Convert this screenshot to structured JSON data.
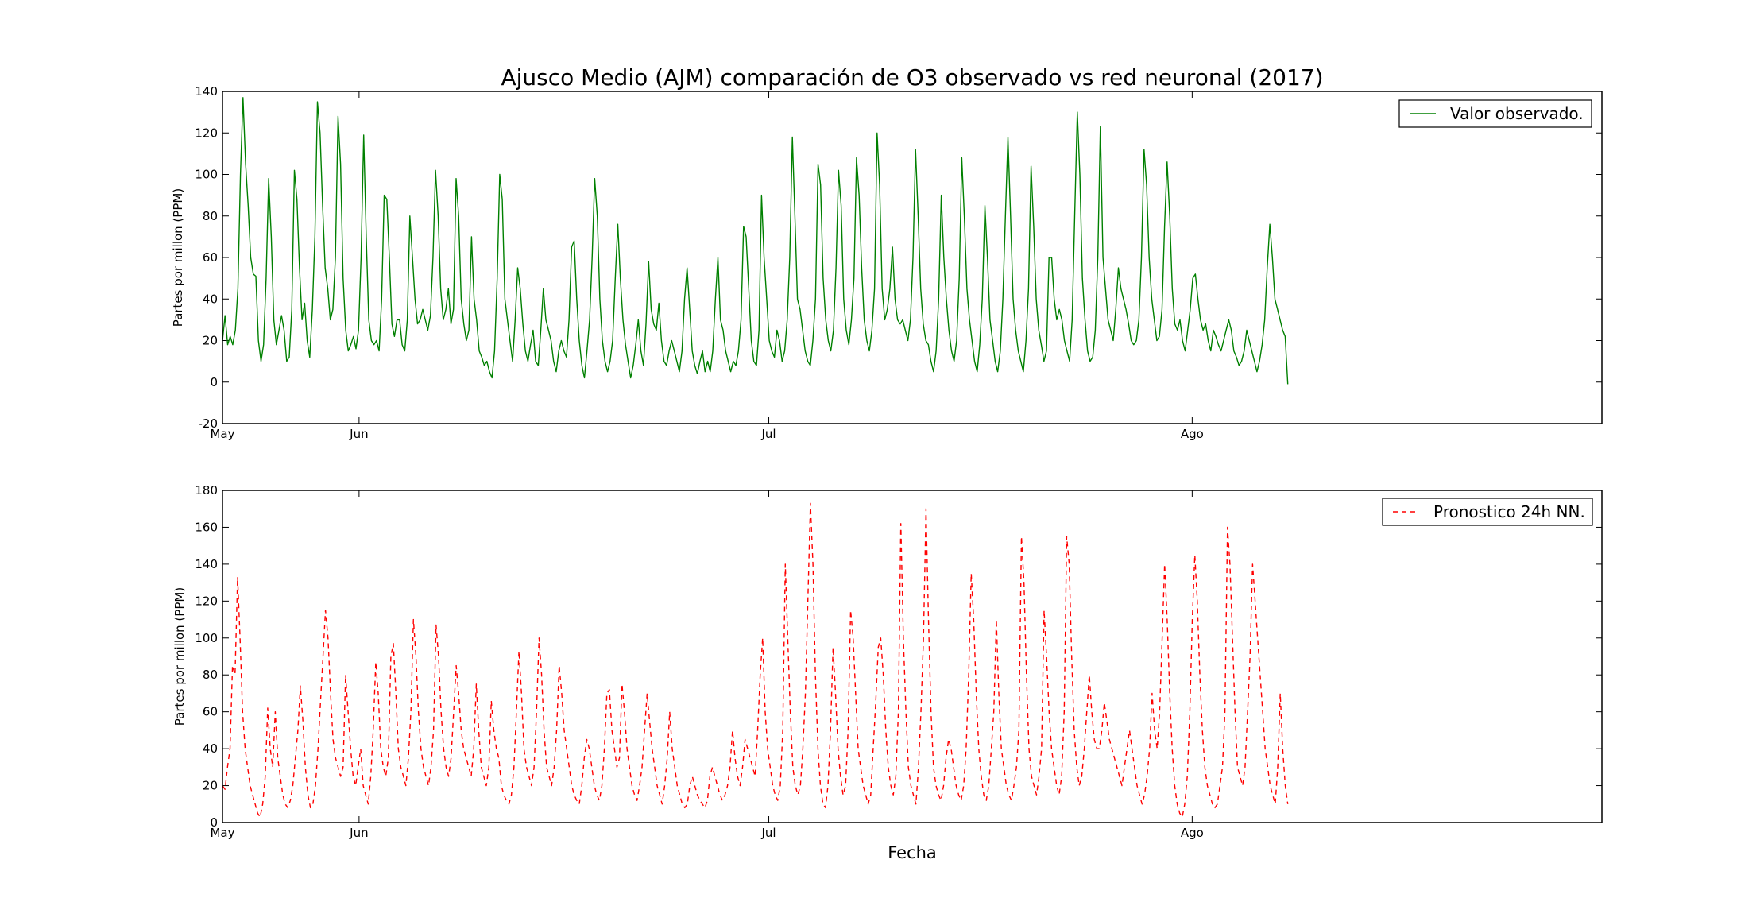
{
  "figure": {
    "title": "Ajusco Medio (AJM) comparación de O3 observado vs red neuronal (2017)",
    "xlabel": "Fecha"
  },
  "chart_data": [
    {
      "type": "line",
      "title": "Ajusco Medio (AJM) comparación de O3 observado vs red neuronal (2017)",
      "xlabel": "",
      "ylabel": "Partes por millon (PPM)",
      "ylim": [
        -20,
        140
      ],
      "yticks": [
        -20,
        0,
        20,
        40,
        60,
        80,
        100,
        120,
        140
      ],
      "xlim": [
        "2017-05-22",
        "2017-08-31"
      ],
      "xticks": [
        {
          "label": "May",
          "date": "2017-05-22"
        },
        {
          "label": "Jun",
          "date": "2017-06-01"
        },
        {
          "label": "Jul",
          "date": "2017-07-01"
        },
        {
          "label": "Ago",
          "date": "2017-08-01"
        }
      ],
      "grid": false,
      "legend_position": "top-right",
      "series": [
        {
          "name": "Valor observado.",
          "color": "#008000",
          "line_style": "solid",
          "x_start": "2017-05-22",
          "x_end": "2017-08-08",
          "values": [
            20,
            32,
            18,
            22,
            18,
            25,
            45,
            100,
            137,
            105,
            85,
            60,
            52,
            51,
            20,
            10,
            18,
            50,
            98,
            70,
            30,
            18,
            25,
            32,
            25,
            10,
            12,
            35,
            102,
            88,
            55,
            30,
            38,
            20,
            12,
            35,
            70,
            135,
            120,
            85,
            55,
            45,
            30,
            35,
            60,
            128,
            105,
            50,
            25,
            15,
            18,
            22,
            16,
            25,
            60,
            119,
            70,
            30,
            20,
            18,
            20,
            15,
            40,
            90,
            88,
            60,
            28,
            22,
            30,
            30,
            18,
            15,
            30,
            80,
            60,
            40,
            28,
            30,
            35,
            30,
            25,
            32,
            60,
            102,
            80,
            45,
            30,
            35,
            45,
            28,
            35,
            98,
            80,
            40,
            28,
            20,
            25,
            70,
            40,
            30,
            15,
            12,
            8,
            10,
            5,
            2,
            15,
            50,
            100,
            88,
            40,
            30,
            20,
            10,
            30,
            55,
            45,
            28,
            15,
            10,
            18,
            25,
            10,
            8,
            25,
            45,
            30,
            25,
            20,
            10,
            5,
            15,
            20,
            15,
            12,
            30,
            65,
            68,
            40,
            20,
            8,
            2,
            15,
            30,
            60,
            98,
            80,
            40,
            20,
            10,
            5,
            10,
            20,
            50,
            76,
            50,
            30,
            18,
            10,
            2,
            8,
            18,
            30,
            15,
            8,
            28,
            58,
            35,
            28,
            25,
            38,
            20,
            10,
            8,
            15,
            20,
            15,
            10,
            5,
            15,
            40,
            55,
            35,
            15,
            8,
            4,
            10,
            15,
            5,
            10,
            5,
            15,
            40,
            60,
            30,
            25,
            15,
            10,
            5,
            10,
            8,
            15,
            30,
            75,
            70,
            45,
            20,
            10,
            8,
            25,
            90,
            60,
            40,
            20,
            15,
            12,
            25,
            20,
            10,
            15,
            30,
            60,
            118,
            80,
            40,
            35,
            25,
            15,
            10,
            8,
            20,
            40,
            105,
            95,
            50,
            30,
            20,
            15,
            25,
            55,
            102,
            85,
            40,
            25,
            18,
            30,
            50,
            108,
            90,
            55,
            30,
            20,
            15,
            25,
            45,
            120,
            95,
            45,
            30,
            35,
            45,
            65,
            40,
            30,
            28,
            30,
            25,
            20,
            30,
            60,
            112,
            80,
            45,
            28,
            20,
            18,
            10,
            5,
            15,
            40,
            90,
            60,
            40,
            25,
            15,
            10,
            20,
            50,
            108,
            80,
            45,
            30,
            20,
            10,
            5,
            18,
            40,
            85,
            60,
            30,
            20,
            10,
            5,
            15,
            40,
            80,
            118,
            80,
            40,
            25,
            15,
            10,
            5,
            20,
            45,
            104,
            75,
            40,
            25,
            18,
            10,
            15,
            60,
            60,
            40,
            30,
            35,
            30,
            20,
            15,
            10,
            30,
            80,
            130,
            100,
            50,
            30,
            15,
            10,
            12,
            25,
            60,
            123,
            60,
            45,
            30,
            25,
            20,
            35,
            55,
            45,
            40,
            35,
            28,
            20,
            18,
            20,
            30,
            60,
            112,
            95,
            60,
            40,
            30,
            20,
            22,
            35,
            75,
            106,
            80,
            45,
            28,
            25,
            30,
            20,
            15,
            25,
            35,
            50,
            52,
            40,
            30,
            25,
            28,
            20,
            15,
            25,
            22,
            18,
            15,
            20,
            25,
            30,
            25,
            15,
            12,
            8,
            10,
            15,
            25,
            20,
            15,
            10,
            5,
            10,
            18,
            30,
            55,
            76,
            60,
            40,
            35,
            30,
            25,
            22,
            -1
          ]
        }
      ]
    },
    {
      "type": "line",
      "title": "",
      "xlabel": "Fecha",
      "ylabel": "Partes por millon (PPM)",
      "ylim": [
        0,
        180
      ],
      "yticks": [
        0,
        20,
        40,
        60,
        80,
        100,
        120,
        140,
        160,
        180
      ],
      "xlim": [
        "2017-05-22",
        "2017-08-31"
      ],
      "xticks": [
        {
          "label": "May",
          "date": "2017-05-22"
        },
        {
          "label": "Jun",
          "date": "2017-06-01"
        },
        {
          "label": "Jul",
          "date": "2017-07-01"
        },
        {
          "label": "Ago",
          "date": "2017-08-01"
        }
      ],
      "grid": false,
      "legend_position": "top-right",
      "series": [
        {
          "name": "Pronostico 24h NN.",
          "color": "#ff0000",
          "line_style": "dashed",
          "x_start": "2017-05-22",
          "x_end": "2017-08-08",
          "values": [
            20,
            18,
            30,
            40,
            85,
            80,
            133,
            100,
            60,
            40,
            30,
            20,
            15,
            10,
            5,
            3,
            10,
            25,
            62,
            40,
            30,
            60,
            35,
            25,
            15,
            10,
            8,
            12,
            20,
            35,
            50,
            74,
            55,
            30,
            15,
            8,
            10,
            20,
            40,
            65,
            90,
            115,
            100,
            70,
            45,
            35,
            30,
            25,
            30,
            80,
            60,
            40,
            25,
            20,
            30,
            40,
            20,
            15,
            10,
            25,
            50,
            87,
            70,
            40,
            30,
            25,
            35,
            90,
            97,
            70,
            40,
            30,
            25,
            20,
            35,
            60,
            110,
            90,
            60,
            40,
            30,
            25,
            20,
            30,
            50,
            107,
            90,
            60,
            40,
            30,
            25,
            35,
            60,
            85,
            70,
            50,
            40,
            35,
            30,
            25,
            40,
            75,
            50,
            30,
            25,
            20,
            30,
            66,
            50,
            40,
            35,
            20,
            15,
            12,
            10,
            15,
            30,
            60,
            93,
            70,
            40,
            30,
            25,
            20,
            30,
            60,
            100,
            80,
            50,
            30,
            25,
            20,
            30,
            50,
            85,
            70,
            50,
            40,
            30,
            20,
            15,
            12,
            10,
            20,
            35,
            45,
            40,
            30,
            20,
            15,
            12,
            20,
            40,
            70,
            72,
            50,
            40,
            30,
            35,
            75,
            60,
            40,
            30,
            20,
            15,
            12,
            20,
            30,
            50,
            70,
            55,
            40,
            30,
            20,
            15,
            10,
            20,
            35,
            60,
            40,
            30,
            20,
            15,
            10,
            8,
            10,
            20,
            25,
            20,
            15,
            12,
            10,
            8,
            12,
            25,
            30,
            25,
            20,
            15,
            12,
            15,
            20,
            30,
            50,
            35,
            25,
            20,
            30,
            45,
            40,
            35,
            30,
            25,
            50,
            80,
            100,
            60,
            40,
            30,
            20,
            15,
            12,
            20,
            50,
            140,
            100,
            60,
            30,
            20,
            15,
            20,
            40,
            70,
            120,
            173,
            140,
            80,
            40,
            20,
            10,
            8,
            20,
            50,
            95,
            70,
            40,
            25,
            15,
            20,
            50,
            115,
            100,
            70,
            40,
            30,
            20,
            15,
            10,
            15,
            40,
            65,
            95,
            100,
            80,
            50,
            30,
            20,
            15,
            25,
            60,
            162,
            100,
            60,
            30,
            20,
            15,
            10,
            30,
            60,
            100,
            170,
            110,
            60,
            30,
            20,
            15,
            12,
            20,
            35,
            45,
            40,
            30,
            20,
            15,
            12,
            20,
            40,
            80,
            135,
            110,
            70,
            40,
            25,
            15,
            12,
            20,
            40,
            60,
            110,
            70,
            40,
            30,
            20,
            15,
            12,
            20,
            30,
            50,
            155,
            130,
            80,
            40,
            25,
            20,
            15,
            25,
            40,
            115,
            90,
            60,
            40,
            30,
            20,
            15,
            25,
            60,
            155,
            140,
            90,
            50,
            30,
            20,
            25,
            40,
            60,
            80,
            60,
            45,
            40,
            40,
            50,
            65,
            55,
            45,
            40,
            35,
            30,
            25,
            20,
            30,
            40,
            50,
            40,
            30,
            20,
            15,
            10,
            15,
            25,
            40,
            70,
            50,
            40,
            60,
            100,
            140,
            110,
            70,
            40,
            20,
            10,
            5,
            3,
            10,
            25,
            60,
            110,
            145,
            120,
            80,
            50,
            30,
            20,
            15,
            10,
            8,
            10,
            20,
            30,
            60,
            160,
            140,
            100,
            60,
            30,
            25,
            20,
            30,
            60,
            90,
            140,
            120,
            100,
            80,
            60,
            40,
            30,
            20,
            15,
            10,
            30,
            70,
            40,
            20,
            10
          ]
        }
      ]
    }
  ]
}
